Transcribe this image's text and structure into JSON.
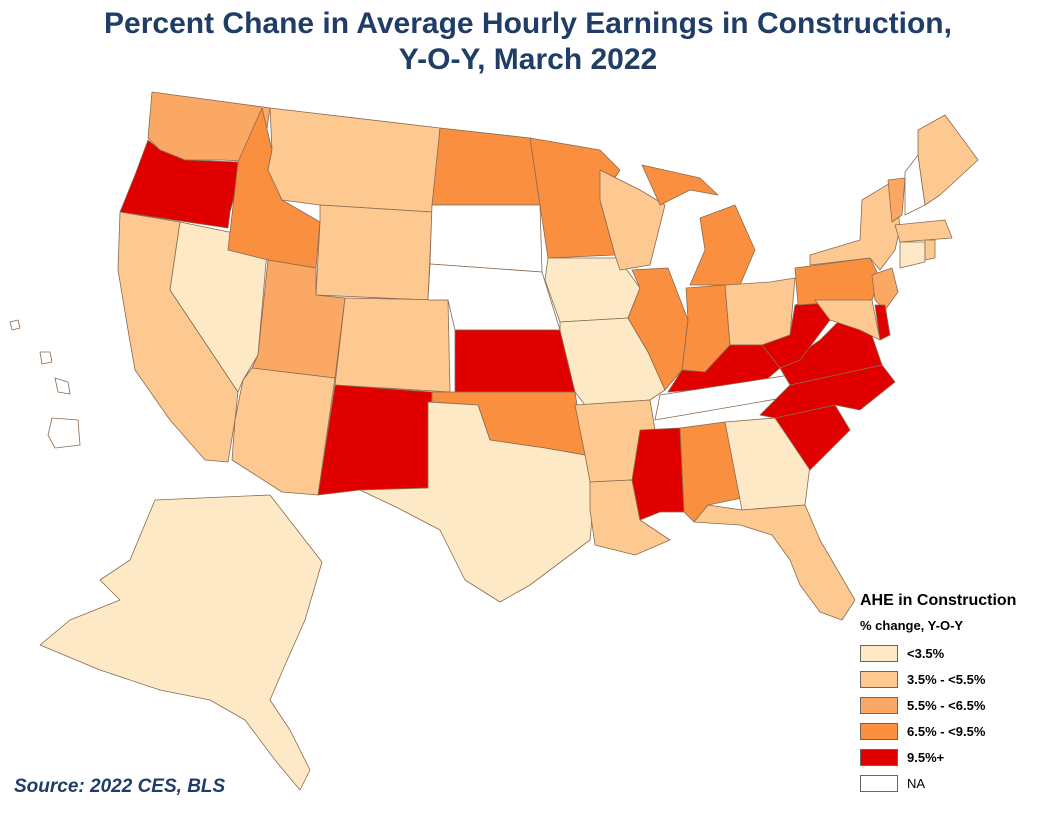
{
  "title_line1": "Percent Chane in Average Hourly Earnings in Construction,",
  "title_line2": "Y-O-Y, March 2022",
  "source": "Source: 2022 CES, BLS",
  "legend": {
    "title": "AHE in Construction",
    "subtitle": "% change, Y-O-Y",
    "classes": [
      {
        "key": "c1",
        "label": "<3.5%",
        "color": "#fde9c6"
      },
      {
        "key": "c2",
        "label": "3.5% - <5.5%",
        "color": "#fdc991"
      },
      {
        "key": "c3",
        "label": "5.5% - <6.5%",
        "color": "#fca865"
      },
      {
        "key": "c4",
        "label": "6.5% - <9.5%",
        "color": "#f98f3f"
      },
      {
        "key": "c5",
        "label": "9.5%+",
        "color": "#e00000"
      },
      {
        "key": "na",
        "label": "NA",
        "color": "#ffffff"
      }
    ]
  },
  "chart_data": {
    "type": "choropleth",
    "title": "Percent Chane in Average Hourly Earnings in Construction, Y-O-Y, March 2022",
    "legend_title": "AHE in Construction",
    "legend_subtitle": "% change, Y-O-Y",
    "legend_position": "bottom-right",
    "state_class": {
      "WA": "c3",
      "OR": "c5",
      "CA": "c2",
      "NV": "c1",
      "ID": "c4",
      "MT": "c2",
      "WY": "c2",
      "UT": "c3",
      "CO": "c2",
      "AZ": "c2",
      "NM": "c5",
      "ND": "c4",
      "SD": "na",
      "NE": "na",
      "KS": "c5",
      "OK": "c4",
      "TX": "c1",
      "MN": "c4",
      "IA": "c1",
      "MO": "c1",
      "AR": "c2",
      "LA": "c2",
      "WI": "c2",
      "IL": "c4",
      "MI": "c4",
      "IN": "c4",
      "OH": "c2",
      "KY": "c5",
      "TN": "na",
      "MS": "c5",
      "AL": "c4",
      "GA": "c1",
      "FL": "c2",
      "SC": "c5",
      "NC": "c5",
      "VA": "c5",
      "WV": "c5",
      "PA": "c4",
      "NY": "c2",
      "VT": "c3",
      "NH": "na",
      "ME": "c2",
      "MA": "c2",
      "CT": "c1",
      "RI": "c2",
      "NJ": "c3",
      "DE": "c5",
      "MD": "c2",
      "DC": "na",
      "AK": "c1",
      "HI": "na"
    }
  }
}
